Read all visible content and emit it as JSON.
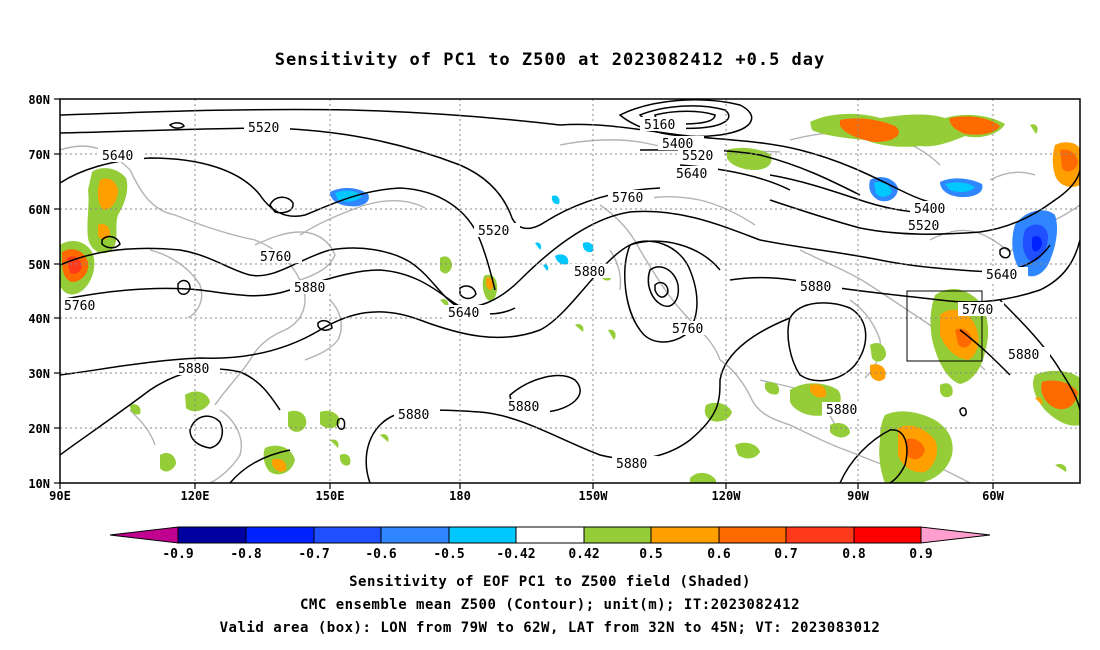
{
  "title": "Sensitivity of PC1 to Z500 at 2023082412 +0.5 day",
  "lat_labels": [
    "80N",
    "70N",
    "60N",
    "50N",
    "40N",
    "30N",
    "20N",
    "10N"
  ],
  "lon_labels": [
    "90E",
    "120E",
    "150E",
    "180",
    "150W",
    "120W",
    "90W",
    "60W"
  ],
  "contour_labels": {
    "l5520a": "5520",
    "l5640a": "5640",
    "l5760a": "5760",
    "l5880a": "5880",
    "l5760b": "5760",
    "l5640b": "5640",
    "l5520b": "5520",
    "l5160": "5160",
    "l5400a": "5400",
    "l5520c": "5520",
    "l5640c": "5640",
    "l5760c": "5760",
    "l5880b": "5880",
    "l5760d": "5760",
    "l5880c": "5880",
    "l5400b": "5400",
    "l5520d": "5520",
    "l5640d": "5640",
    "l5760e": "5760",
    "l5880d": "5880",
    "l5880e": "5880",
    "l5880f": "5880",
    "l5880g": "5880",
    "l5880h": "5880",
    "l5880i": "5880"
  },
  "colorbar": {
    "ticks": [
      "-0.9",
      "-0.8",
      "-0.7",
      "-0.6",
      "-0.5",
      "-0.42",
      "0.42",
      "0.5",
      "0.6",
      "0.7",
      "0.8",
      "0.9"
    ],
    "colors": [
      "#c0008f",
      "#0000a0",
      "#0022ff",
      "#1f4fff",
      "#2f86ff",
      "#00c8ff",
      "#ffffff",
      "#94cd37",
      "#ff9f00",
      "#ff6a00",
      "#ff3a1a",
      "#ff0000",
      "#ff9fcf"
    ]
  },
  "valid_box": {
    "lon_from": "79W",
    "lon_to": "62W",
    "lat_from": "32N",
    "lat_to": "45N"
  },
  "footer": {
    "line1": "Sensitivity of EOF PC1 to Z500 field (Shaded)",
    "line2": "CMC ensemble mean Z500 (Contour); unit(m); IT:2023082412",
    "line3": "Valid area (box): LON from 79W to 62W, LAT from 32N to 45N; VT: 2023083012"
  }
}
